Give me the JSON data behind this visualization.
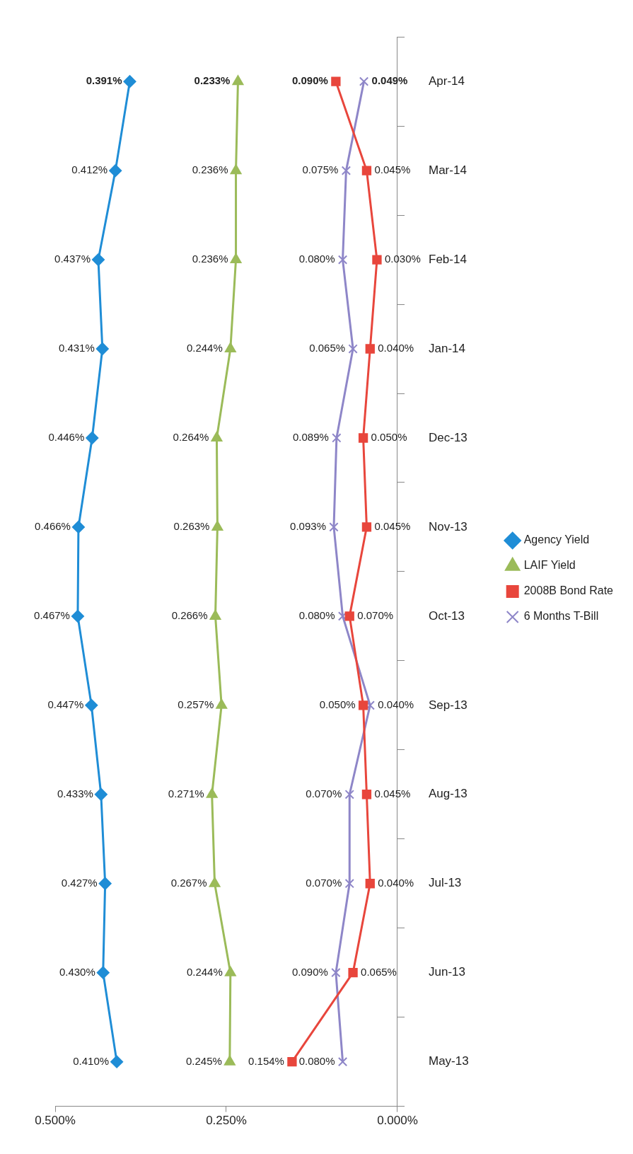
{
  "chart_data": {
    "type": "line",
    "categories": [
      "Apr-14",
      "Mar-14",
      "Feb-14",
      "Jan-14",
      "Dec-13",
      "Nov-13",
      "Oct-13",
      "Sep-13",
      "Aug-13",
      "Jul-13",
      "Jun-13",
      "May-13"
    ],
    "series": [
      {
        "name": "Agency Yield",
        "color": "#1f8dd6",
        "marker": "diamond",
        "values": [
          0.391,
          0.412,
          0.437,
          0.431,
          0.446,
          0.466,
          0.467,
          0.447,
          0.433,
          0.427,
          0.43,
          0.41
        ],
        "value_labels": [
          "0.391%",
          "0.412%",
          "0.437%",
          "0.431%",
          "0.446%",
          "0.466%",
          "0.467%",
          "0.447%",
          "0.433%",
          "0.427%",
          "0.430%",
          "0.410%"
        ]
      },
      {
        "name": "LAIF Yield",
        "color": "#9bbb59",
        "marker": "triangle",
        "values": [
          0.233,
          0.236,
          0.236,
          0.244,
          0.264,
          0.263,
          0.266,
          0.257,
          0.271,
          0.267,
          0.244,
          0.245
        ],
        "value_labels": [
          "0.233%",
          "0.236%",
          "0.236%",
          "0.244%",
          "0.264%",
          "0.263%",
          "0.266%",
          "0.257%",
          "0.271%",
          "0.267%",
          "0.244%",
          "0.245%"
        ]
      },
      {
        "name": "2008B Bond Rate",
        "color": "#e8463c",
        "marker": "square",
        "values": [
          0.09,
          0.045,
          0.03,
          0.04,
          0.05,
          0.045,
          0.07,
          0.05,
          0.045,
          0.04,
          0.065,
          0.154
        ],
        "value_labels": [
          "0.090%",
          "0.045%",
          "0.030%",
          "0.040%",
          "0.050%",
          "0.045%",
          "0.070%",
          "0.050%",
          "0.045%",
          "0.040%",
          "0.065%",
          "0.154%"
        ]
      },
      {
        "name": "6 Months T-Bill",
        "color": "#8e86c8",
        "marker": "cross",
        "values": [
          0.049,
          0.075,
          0.08,
          0.065,
          0.089,
          0.093,
          0.08,
          0.04,
          0.07,
          0.07,
          0.09,
          0.08
        ],
        "value_labels": [
          "0.049%",
          "0.075%",
          "0.080%",
          "0.065%",
          "0.089%",
          "0.093%",
          "0.080%",
          "0.040%",
          "0.070%",
          "0.070%",
          "0.090%",
          "0.080%"
        ]
      }
    ],
    "orientation": "horizontal",
    "xlim": [
      0.5,
      0
    ],
    "xticks": [
      {
        "value": 0,
        "label": "0.000%"
      },
      {
        "value": 0.25,
        "label": "0.250%"
      },
      {
        "value": 0.5,
        "label": "0.500%"
      }
    ],
    "grid": false,
    "legend": "right"
  }
}
